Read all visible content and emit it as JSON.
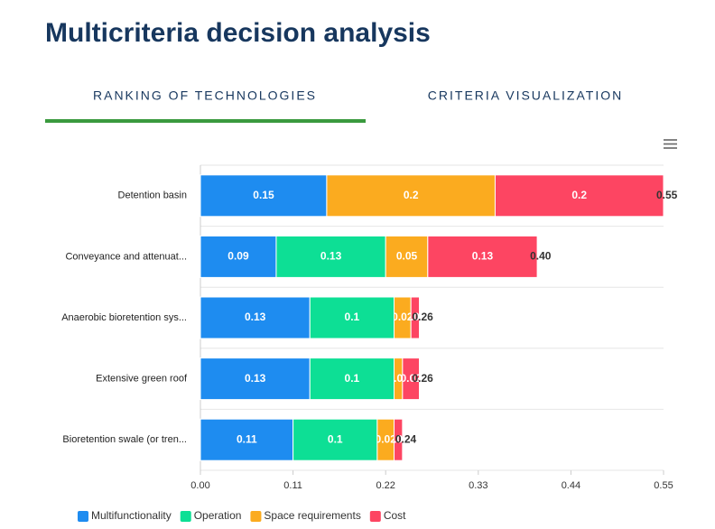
{
  "header": {
    "title": "Multicriteria decision analysis"
  },
  "tabs": [
    "RANKING OF TECHNOLOGIES",
    "CRITERIA VISUALIZATION"
  ],
  "chart_data": {
    "type": "stacked-bar-horizontal",
    "categories": [
      "Detention basin",
      "Conveyance and attenuat...",
      "Anaerobic bioretention sys...",
      "Extensive green roof",
      "Bioretention swale (or tren..."
    ],
    "series": [
      {
        "name": "Multifunctionality",
        "color": "#1e8cf0",
        "values": [
          0.15,
          0.09,
          0.13,
          0.13,
          0.11
        ]
      },
      {
        "name": "Operation",
        "color": "#0ddf95",
        "values": [
          0,
          0.13,
          0.1,
          0.1,
          0.1
        ]
      },
      {
        "name": "Space requirements",
        "color": "#fbab1f",
        "values": [
          0.2,
          0.05,
          0.02,
          0.01,
          0.02
        ]
      },
      {
        "name": "Cost",
        "color": "#fd4562",
        "values": [
          0.2,
          0.13,
          0.01,
          0.02,
          0.01
        ]
      }
    ],
    "totals": {
      "values": [
        0.55,
        0.4,
        0.26,
        0.26,
        0.24
      ],
      "value_labels": [
        "0.55",
        "0.40",
        "0.26",
        "0.26",
        "0.24"
      ]
    },
    "xlim": [
      0,
      0.55
    ],
    "xticks": [
      {
        "value": 0,
        "label": "0.00"
      },
      0.11,
      0.22,
      0.33,
      0.44,
      0.55
    ],
    "legend": "bottom-left"
  }
}
